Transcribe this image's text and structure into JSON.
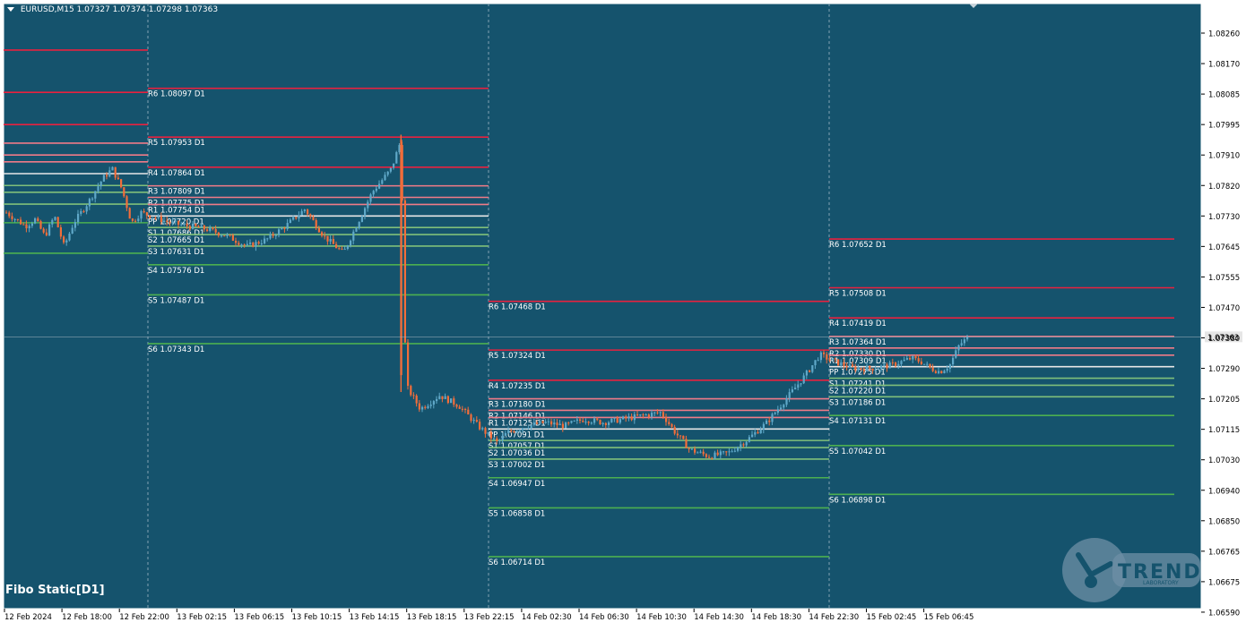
{
  "header": {
    "symbol": "EURUSD,M15",
    "ohlc": "1.07327 1.07374 1.07298 1.07363"
  },
  "indicator": {
    "name": "Fibo Static[D1]"
  },
  "logo": {
    "word": "TREND",
    "sub": "LABORATORY"
  },
  "colors": {
    "background": "#15536d",
    "frame": "#ffffff",
    "axis_text": "#000000",
    "up_candle": "#5fa8c8",
    "down_candle": "#f26d3a",
    "resistance_strong": "#e8213f",
    "resistance_light": "#f07b88",
    "pivot": "#e6e6e6",
    "support": "#7fbf7a",
    "support_strong": "#4caf50"
  },
  "chart_data": {
    "type": "candlestick",
    "symbol": "EURUSD",
    "timeframe": "M15",
    "current_price": "1.07363",
    "y_ticks": [
      "1.08260",
      "1.08170",
      "1.08085",
      "1.07995",
      "1.07910",
      "1.07820",
      "1.07730",
      "1.07645",
      "1.07555",
      "1.07470",
      "1.07380",
      "1.07290",
      "1.07205",
      "1.07115",
      "1.07030",
      "1.06940",
      "1.06850",
      "1.06765",
      "1.06675",
      "1.06590"
    ],
    "ylim": [
      1.0659,
      1.0826
    ],
    "x_ticks": [
      "12 Feb 2024",
      "12 Feb 18:00",
      "12 Feb 22:00",
      "13 Feb 02:15",
      "13 Feb 06:15",
      "13 Feb 10:15",
      "13 Feb 14:15",
      "13 Feb 18:15",
      "13 Feb 22:15",
      "14 Feb 02:30",
      "14 Feb 06:30",
      "14 Feb 10:30",
      "14 Feb 14:30",
      "14 Feb 18:30",
      "14 Feb 22:30",
      "15 Feb 02:45",
      "15 Feb 06:45"
    ],
    "day_separators": [
      "12 Feb 22:00",
      "13 Feb 22:15",
      "14 Feb 22:30"
    ],
    "days": [
      {
        "day": "12 Feb",
        "levels": [
          {
            "name": "R6",
            "value": 1.0821
          },
          {
            "name": "R5",
            "value": 1.08085
          },
          {
            "name": "R4",
            "value": 1.0799
          },
          {
            "name": "R3",
            "value": 1.07935
          },
          {
            "name": "R2",
            "value": 1.079
          },
          {
            "name": "R1",
            "value": 1.0788
          },
          {
            "name": "PP",
            "value": 1.07845
          },
          {
            "name": "S1",
            "value": 1.0781
          },
          {
            "name": "S2",
            "value": 1.0779
          },
          {
            "name": "S3",
            "value": 1.07755
          },
          {
            "name": "S4",
            "value": 1.077
          },
          {
            "name": "S5",
            "value": 1.0761
          }
        ]
      },
      {
        "day": "13 Feb",
        "levels": [
          {
            "name": "R6",
            "value": 1.08097,
            "label": "R6 1.08097 D1"
          },
          {
            "name": "R5",
            "value": 1.07953,
            "label": "R5 1.07953 D1"
          },
          {
            "name": "R4",
            "value": 1.07864,
            "label": "R4 1.07864 D1"
          },
          {
            "name": "R3",
            "value": 1.07809,
            "label": "R3 1.07809 D1"
          },
          {
            "name": "R2",
            "value": 1.07775,
            "label": "R2 1.07775 D1"
          },
          {
            "name": "R1",
            "value": 1.07754,
            "label": "R1 1.07754 D1"
          },
          {
            "name": "PP",
            "value": 1.0772,
            "label": "PP 1.07720 D1"
          },
          {
            "name": "S1",
            "value": 1.07686,
            "label": "S1 1.07686 D1"
          },
          {
            "name": "S2",
            "value": 1.07665,
            "label": "S2 1.07665 D1"
          },
          {
            "name": "S3",
            "value": 1.07631,
            "label": "S3 1.07631 D1"
          },
          {
            "name": "S4",
            "value": 1.07576,
            "label": "S4 1.07576 D1"
          },
          {
            "name": "S5",
            "value": 1.07487,
            "label": "S5 1.07487 D1"
          },
          {
            "name": "S6",
            "value": 1.07343,
            "label": "S6 1.07343 D1"
          }
        ]
      },
      {
        "day": "14 Feb",
        "levels": [
          {
            "name": "R6",
            "value": 1.07468,
            "label": "R6 1.07468 D1"
          },
          {
            "name": "R5",
            "value": 1.07324,
            "label": "R5 1.07324 D1"
          },
          {
            "name": "R4",
            "value": 1.07235,
            "label": "R4 1.07235 D1"
          },
          {
            "name": "R3",
            "value": 1.0718,
            "label": "R3 1.07180 D1"
          },
          {
            "name": "R2",
            "value": 1.07146,
            "label": "R2 1.07146 D1"
          },
          {
            "name": "R1",
            "value": 1.07125,
            "label": "R1 1.07125 D1"
          },
          {
            "name": "PP",
            "value": 1.07091,
            "label": "PP 1.07091 D1"
          },
          {
            "name": "S1",
            "value": 1.07057,
            "label": "S1 1.07057 D1"
          },
          {
            "name": "S2",
            "value": 1.07036,
            "label": "S2 1.07036 D1"
          },
          {
            "name": "S3",
            "value": 1.07002,
            "label": "S3 1.07002 D1"
          },
          {
            "name": "S4",
            "value": 1.06947,
            "label": "S4 1.06947 D1"
          },
          {
            "name": "S5",
            "value": 1.06858,
            "label": "S5 1.06858 D1"
          },
          {
            "name": "S6",
            "value": 1.06714,
            "label": "S6 1.06714 D1"
          }
        ]
      },
      {
        "day": "15 Feb",
        "levels": [
          {
            "name": "R6",
            "value": 1.07652,
            "label": "R6 1.07652 D1"
          },
          {
            "name": "R5",
            "value": 1.07508,
            "label": "R5 1.07508 D1"
          },
          {
            "name": "R4",
            "value": 1.07419,
            "label": "R4 1.07419 D1"
          },
          {
            "name": "R3",
            "value": 1.07364,
            "label": "R3 1.07364 D1"
          },
          {
            "name": "R2",
            "value": 1.0733,
            "label": "R2 1.07330 D1"
          },
          {
            "name": "R1",
            "value": 1.07309,
            "label": "R1 1.07309 D1"
          },
          {
            "name": "PP",
            "value": 1.07275,
            "label": "PP 1.07275 D1"
          },
          {
            "name": "S1",
            "value": 1.07241,
            "label": "S1 1.07241 D1"
          },
          {
            "name": "S2",
            "value": 1.0722,
            "label": "S2 1.07220 D1"
          },
          {
            "name": "S3",
            "value": 1.07186,
            "label": "S3 1.07186 D1"
          },
          {
            "name": "S4",
            "value": 1.07131,
            "label": "S4 1.07131 D1"
          },
          {
            "name": "S5",
            "value": 1.07042,
            "label": "S5 1.07042 D1"
          },
          {
            "name": "S6",
            "value": 1.06898,
            "label": "S6 1.06898 D1"
          }
        ]
      }
    ],
    "price_path": [
      {
        "x": 0.0,
        "p": 1.0773
      },
      {
        "x": 0.02,
        "p": 1.0769
      },
      {
        "x": 0.03,
        "p": 1.0771
      },
      {
        "x": 0.04,
        "p": 1.0766
      },
      {
        "x": 0.05,
        "p": 1.0772
      },
      {
        "x": 0.06,
        "p": 1.0763
      },
      {
        "x": 0.07,
        "p": 1.077
      },
      {
        "x": 0.085,
        "p": 1.0776
      },
      {
        "x": 0.1,
        "p": 1.0783
      },
      {
        "x": 0.11,
        "p": 1.0786
      },
      {
        "x": 0.12,
        "p": 1.078
      },
      {
        "x": 0.13,
        "p": 1.077
      },
      {
        "x": 0.14,
        "p": 1.0773
      },
      {
        "x": 0.15,
        "p": 1.0772
      },
      {
        "x": 0.17,
        "p": 1.077
      },
      {
        "x": 0.19,
        "p": 1.0769
      },
      {
        "x": 0.21,
        "p": 1.0768
      },
      {
        "x": 0.23,
        "p": 1.0766
      },
      {
        "x": 0.25,
        "p": 1.0763
      },
      {
        "x": 0.27,
        "p": 1.0765
      },
      {
        "x": 0.29,
        "p": 1.0769
      },
      {
        "x": 0.31,
        "p": 1.0774
      },
      {
        "x": 0.33,
        "p": 1.0766
      },
      {
        "x": 0.35,
        "p": 1.0761
      },
      {
        "x": 0.36,
        "p": 1.0767
      },
      {
        "x": 0.38,
        "p": 1.0779
      },
      {
        "x": 0.4,
        "p": 1.0786
      },
      {
        "x": 0.41,
        "p": 1.07945
      },
      {
        "x": 0.415,
        "p": 1.0722
      },
      {
        "x": 0.43,
        "p": 1.0715
      },
      {
        "x": 0.45,
        "p": 1.0719
      },
      {
        "x": 0.47,
        "p": 1.0716
      },
      {
        "x": 0.49,
        "p": 1.071
      },
      {
        "x": 0.51,
        "p": 1.0705
      },
      {
        "x": 0.52,
        "p": 1.0708
      },
      {
        "x": 0.54,
        "p": 1.071
      },
      {
        "x": 0.56,
        "p": 1.0711
      },
      {
        "x": 0.58,
        "p": 1.071
      },
      {
        "x": 0.6,
        "p": 1.0712
      },
      {
        "x": 0.62,
        "p": 1.0711
      },
      {
        "x": 0.64,
        "p": 1.0712
      },
      {
        "x": 0.66,
        "p": 1.0713
      },
      {
        "x": 0.68,
        "p": 1.0714
      },
      {
        "x": 0.695,
        "p": 1.0708
      },
      {
        "x": 0.71,
        "p": 1.0703
      },
      {
        "x": 0.73,
        "p": 1.0701
      },
      {
        "x": 0.75,
        "p": 1.0702
      },
      {
        "x": 0.77,
        "p": 1.0706
      },
      {
        "x": 0.79,
        "p": 1.0711
      },
      {
        "x": 0.81,
        "p": 1.0718
      },
      {
        "x": 0.83,
        "p": 1.0725
      },
      {
        "x": 0.845,
        "p": 1.0731
      },
      {
        "x": 0.86,
        "p": 1.0729
      },
      {
        "x": 0.88,
        "p": 1.0727
      },
      {
        "x": 0.9,
        "p": 1.0727
      },
      {
        "x": 0.92,
        "p": 1.0728
      },
      {
        "x": 0.94,
        "p": 1.073
      },
      {
        "x": 0.95,
        "p": 1.0729
      },
      {
        "x": 0.96,
        "p": 1.0727
      },
      {
        "x": 0.97,
        "p": 1.0726
      },
      {
        "x": 0.98,
        "p": 1.0728
      },
      {
        "x": 0.99,
        "p": 1.0734
      },
      {
        "x": 1.0,
        "p": 1.07363
      }
    ]
  }
}
